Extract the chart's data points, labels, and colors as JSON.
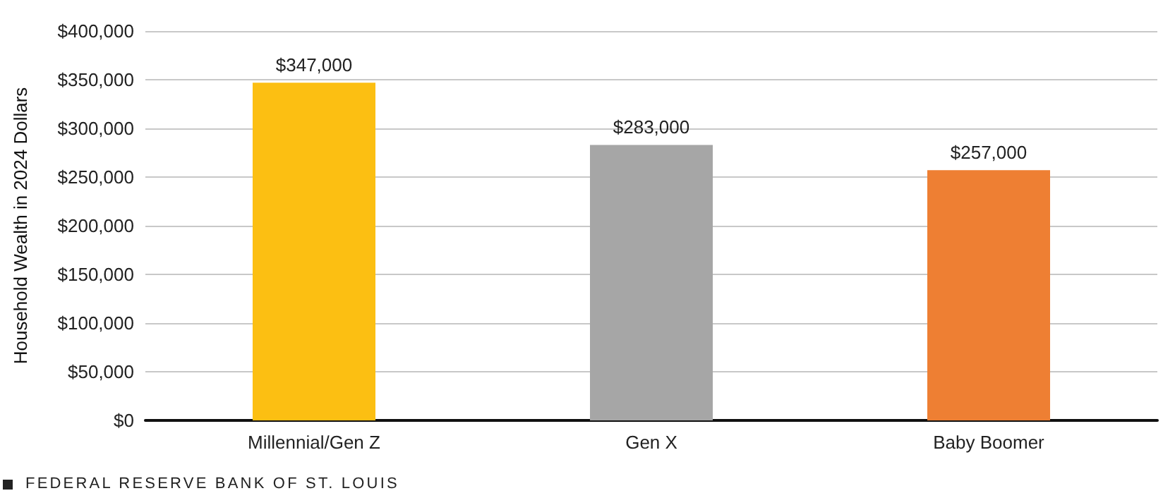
{
  "chart_data": {
    "type": "bar",
    "ylabel": "Household Wealth in 2024 Dollars",
    "categories": [
      "Millennial/Gen Z",
      "Gen X",
      "Baby Boomer"
    ],
    "values": [
      347000,
      283000,
      257000
    ],
    "colors": [
      "#fcbf12",
      "#a6a6a6",
      "#ee7f33"
    ],
    "value_labels": [
      "$347,000",
      "$283,000",
      "$257,000"
    ],
    "ylim": [
      0,
      400000
    ],
    "yticks": [
      {
        "value": 0,
        "label": "$0"
      },
      {
        "value": 50000,
        "label": "$50,000"
      },
      {
        "value": 100000,
        "label": "$100,000"
      },
      {
        "value": 150000,
        "label": "$150,000"
      },
      {
        "value": 200000,
        "label": "$200,000"
      },
      {
        "value": 250000,
        "label": "$250,000"
      },
      {
        "value": 300000,
        "label": "$300,000"
      },
      {
        "value": 350000,
        "label": "$350,000"
      },
      {
        "value": 400000,
        "label": "$400,000"
      }
    ],
    "grid": "y",
    "annotations": [
      "FEDERAL RESERVE BANK OF ST. LOUIS"
    ]
  }
}
